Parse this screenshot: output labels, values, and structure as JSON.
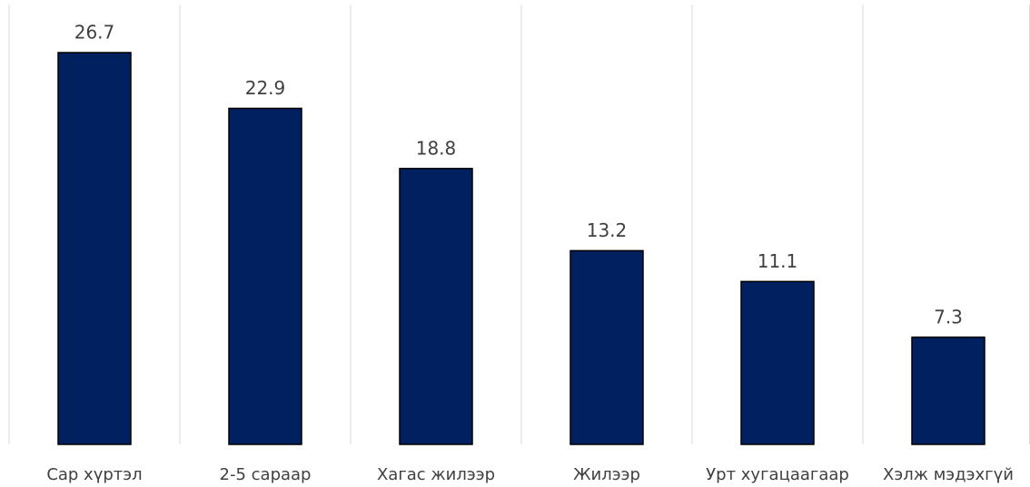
{
  "chart_data": {
    "type": "bar",
    "categories": [
      "Сар хүртэл",
      "2-5 сараар",
      "Хагас жилээр",
      "Жилээр",
      "Урт хугацаагаар",
      "Хэлж мэдэхгүй"
    ],
    "values": [
      26.7,
      22.9,
      18.8,
      13.2,
      11.1,
      7.3
    ],
    "color": "#002060"
  }
}
